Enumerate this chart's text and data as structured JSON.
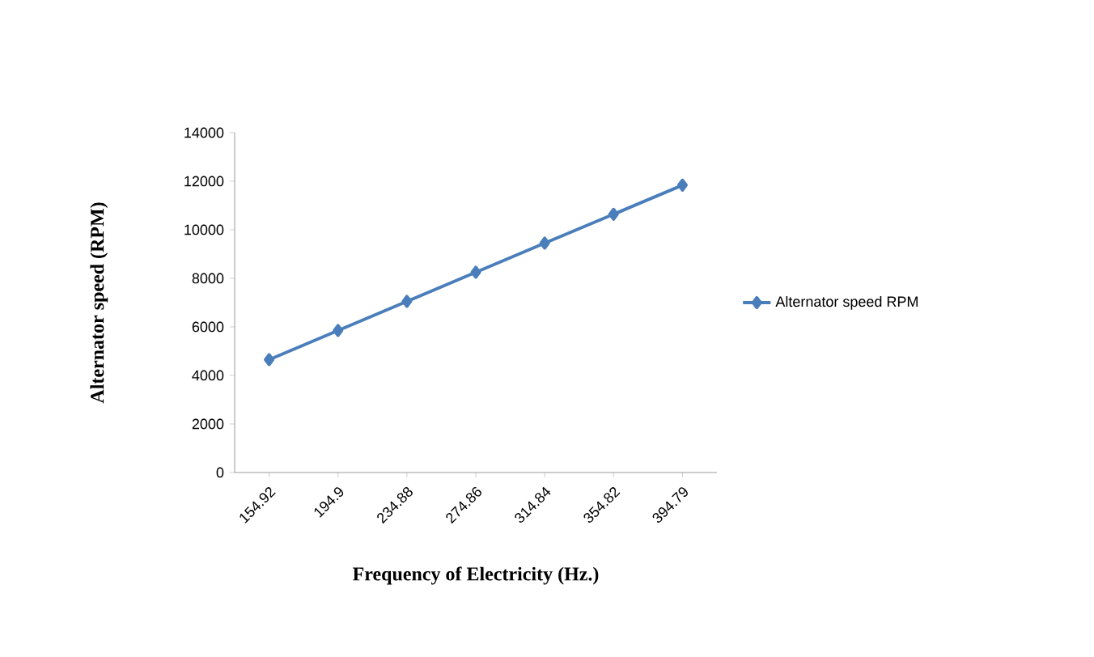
{
  "chart_data": {
    "type": "line",
    "xlabel": "Frequency of Electricity (Hz.)",
    "ylabel": "Alternator speed (RPM)",
    "categories": [
      "154.92",
      "194.9",
      "234.88",
      "274.86",
      "314.84",
      "354.82",
      "394.79"
    ],
    "series": [
      {
        "name": "Alternator speed RPM",
        "color": "#4a7ebb",
        "values": [
          4650,
          5850,
          7050,
          8250,
          9450,
          10640,
          11840
        ]
      }
    ],
    "ylim": [
      0,
      14000
    ],
    "yticks": [
      0,
      2000,
      4000,
      6000,
      8000,
      10000,
      12000,
      14000
    ],
    "grid": false,
    "legend": "right",
    "marker": "diamond",
    "line_style": "solid"
  }
}
